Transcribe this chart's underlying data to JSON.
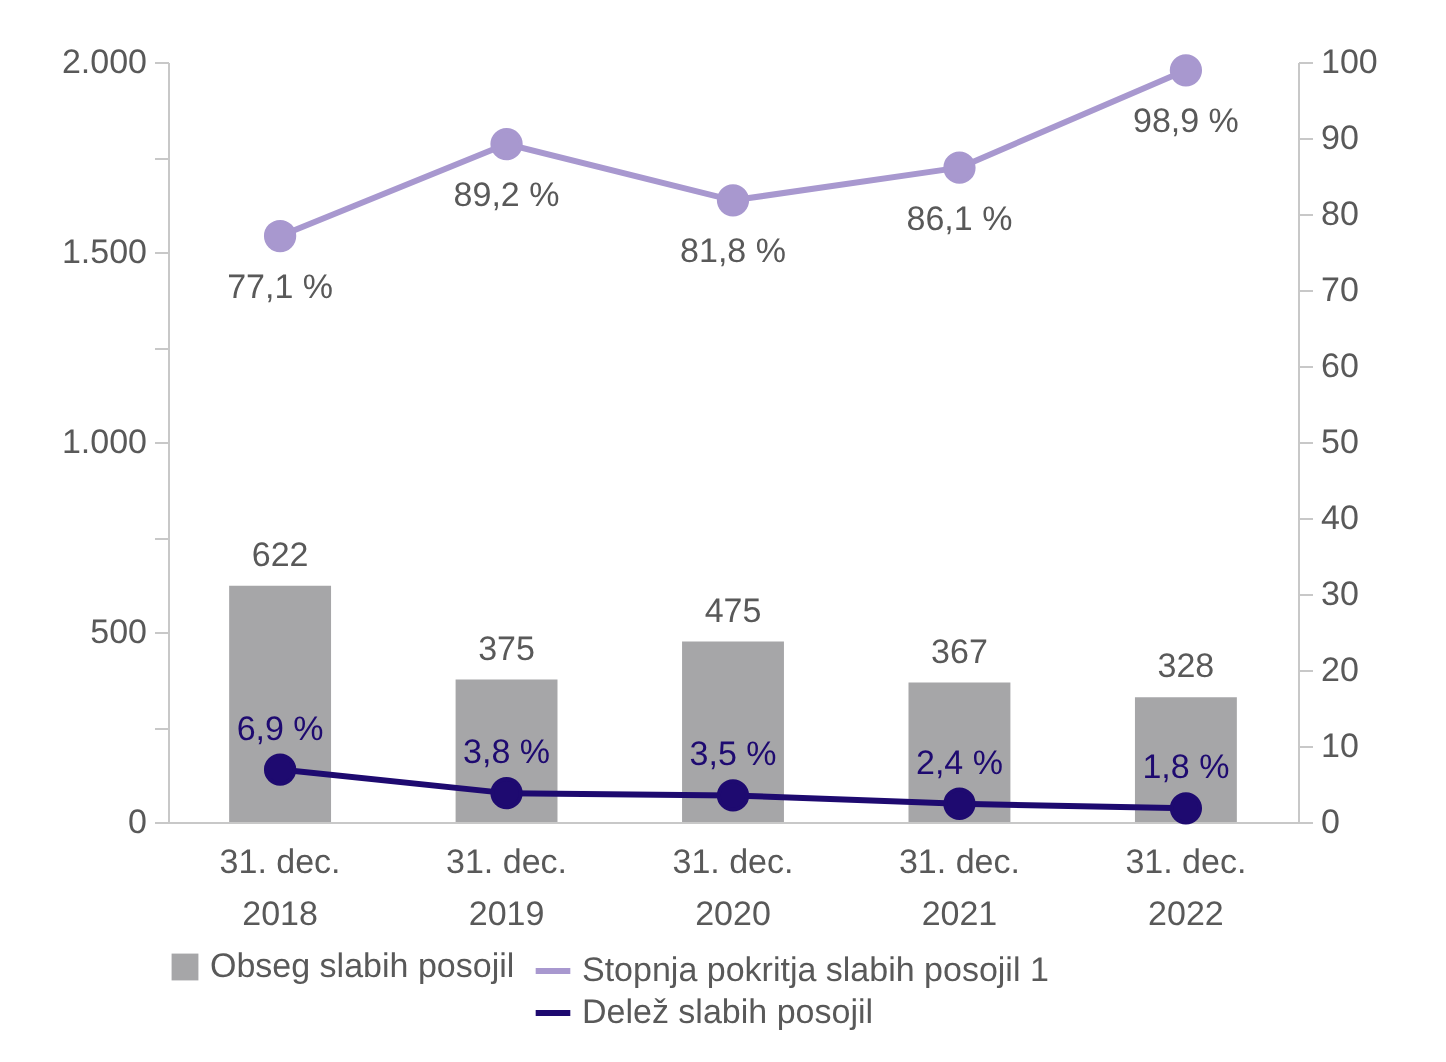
{
  "chart_data": {
    "type": "bar",
    "categories": [
      "31. dec.\n2018",
      "31. dec.\n2019",
      "31. dec.\n2020",
      "31. dec.\n2021",
      "31. dec.\n2022"
    ],
    "series": [
      {
        "name": "Obseg slabih posojil",
        "color": "#a6a6a8",
        "values": [
          622,
          375,
          475,
          367,
          328
        ],
        "value_labels": [
          "622",
          "375",
          "475",
          "367",
          "328"
        ]
      },
      {
        "name": "Stopnja pokritja slabih posojil 1",
        "type": "line",
        "axis": "y2",
        "color": "#a898cf",
        "values": [
          77.1,
          89.2,
          81.8,
          86.1,
          98.9
        ],
        "value_labels": [
          "77,1 %",
          "89,2 %",
          "81,8 %",
          "86,1 %",
          "98,9 %"
        ]
      },
      {
        "name": "Delež slabih posojil",
        "type": "line",
        "axis": "y2",
        "color": "#1e0a70",
        "values": [
          6.9,
          3.8,
          3.5,
          2.4,
          1.8
        ],
        "value_labels": [
          "6,9 %",
          "3,8 %",
          "3,5 %",
          "2,4 %",
          "1,8 %"
        ]
      }
    ],
    "ylim": [
      0,
      2000
    ],
    "yticks": [
      0,
      {
        "value": 250,
        "label": null
      },
      500,
      {
        "value": 750,
        "label": null
      },
      {
        "value": 1000,
        "label": "1.000"
      },
      {
        "value": 1250,
        "label": null
      },
      {
        "value": 1500,
        "label": "1.500"
      },
      {
        "value": 1750,
        "label": null
      },
      {
        "value": 2000,
        "label": "2.000"
      }
    ],
    "y2lim": [
      0,
      100
    ],
    "y2ticks": [
      0,
      10,
      20,
      30,
      40,
      50,
      60,
      70,
      80,
      90,
      100
    ],
    "marker": "circle",
    "legend": "bottom"
  }
}
